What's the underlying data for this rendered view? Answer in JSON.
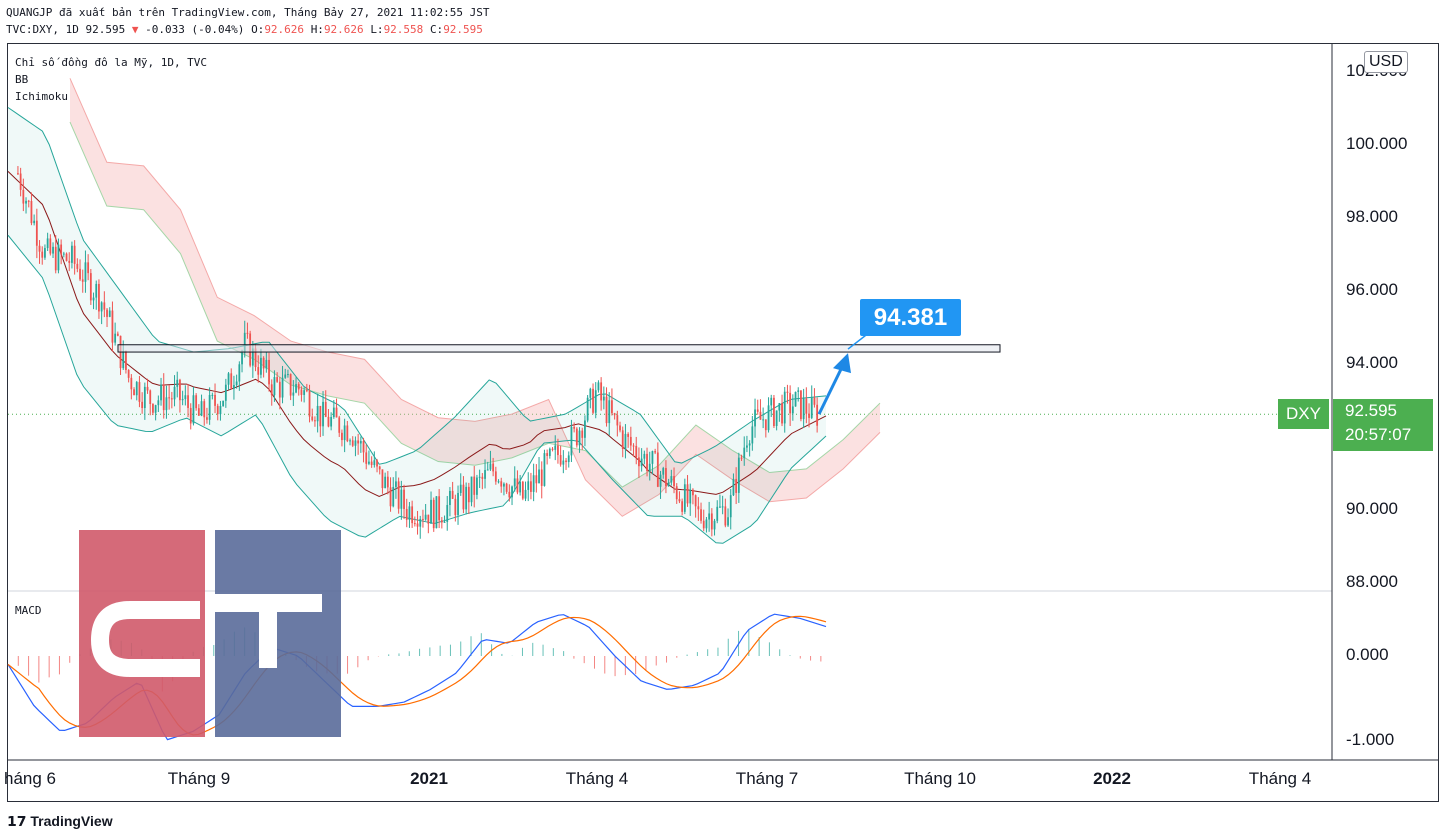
{
  "header": {
    "publish_line": "QUANGJP đã xuất bản trên TradingView.com, Tháng Bảy 27, 2021 11:02:55 JST",
    "symbol_line": "TVC:DXY, 1D 92.595",
    "change_arrow": "▼",
    "change": "-0.033 (-0.04%)",
    "o_label": "O:",
    "o_value": "92.626",
    "h_label": "H:",
    "h_value": "92.626",
    "l_label": "L:",
    "l_value": "92.558",
    "c_label": "C:",
    "c_value": "92.595"
  },
  "legend": {
    "title": "Chỉ số đồng đô la Mỹ, 1D, TVC",
    "indicator1": "BB",
    "indicator2": "Ichimoku",
    "macd": "MACD"
  },
  "price_axis": {
    "currency": "USD",
    "top_clipped": "102.000",
    "ticks": [
      "100.000",
      "98.000",
      "96.000",
      "94.000",
      "90.000",
      "88.000"
    ]
  },
  "macd_axis": {
    "ticks": [
      "0.000",
      "-1.000"
    ]
  },
  "time_axis": {
    "labels": [
      "háng 6",
      "Tháng 9",
      "2021",
      "Tháng 4",
      "Tháng 7",
      "Tháng 10",
      "2022",
      "Tháng 4"
    ]
  },
  "last_price": {
    "symbol": "DXY",
    "price": "92.595",
    "countdown": "20:57:07"
  },
  "annotation": {
    "target": "94.381"
  },
  "footer": {
    "brand": "TradingView"
  },
  "colors": {
    "up": "#26a69a",
    "down": "#ef5350",
    "bb_band": "#26a69a",
    "bb_basis": "#8b1a1a",
    "kumo_bull": "#a5d6a7",
    "kumo_bear": "#f4a9a8",
    "macd_line": "#2962ff",
    "signal_line": "#ff6d00",
    "callout": "#2196f3",
    "price_tag": "#4caf50",
    "logo_red": "#d05a6a",
    "logo_blue": "#5a6c9a"
  },
  "chart_data": {
    "type": "candlestick",
    "symbol": "DXY",
    "timeframe": "1D",
    "x_range": [
      "2020-05",
      "2022-05"
    ],
    "ylim": [
      87.5,
      102.4
    ],
    "close_path": {
      "dates": [
        "2020-05-27",
        "2020-06-10",
        "2020-06-25",
        "2020-07-10",
        "2020-07-25",
        "2020-08-05",
        "2020-08-20",
        "2020-09-01",
        "2020-09-15",
        "2020-09-25",
        "2020-10-10",
        "2020-10-25",
        "2020-11-05",
        "2020-11-20",
        "2020-12-05",
        "2020-12-20",
        "2021-01-05",
        "2021-01-20",
        "2021-02-05",
        "2021-02-20",
        "2021-03-05",
        "2021-03-20",
        "2021-03-31",
        "2021-04-15",
        "2021-04-30",
        "2021-05-15",
        "2021-05-25",
        "2021-06-10",
        "2021-06-20",
        "2021-07-01",
        "2021-07-15",
        "2021-07-27"
      ],
      "close": [
        99.2,
        97.0,
        96.8,
        95.8,
        93.6,
        93.0,
        93.1,
        92.5,
        93.2,
        94.5,
        93.4,
        93.3,
        92.5,
        92.2,
        90.9,
        90.0,
        89.9,
        90.3,
        91.1,
        90.3,
        91.2,
        92.0,
        93.2,
        91.9,
        91.2,
        90.4,
        89.8,
        90.0,
        92.2,
        92.6,
        92.9,
        92.595
      ]
    },
    "bb_upper_path": [
      101.0,
      100.3,
      97.4,
      96.0,
      94.6,
      94.3,
      94.4,
      94.6,
      93.3,
      92.8,
      91.2,
      91.6,
      92.5,
      93.6,
      92.4,
      92.6,
      93.2,
      92.6,
      91.2,
      91.7,
      92.4,
      93.0,
      93.1
    ],
    "bb_lower_path": [
      97.5,
      96.3,
      93.5,
      92.3,
      92.1,
      92.5,
      92.0,
      92.6,
      90.8,
      89.7,
      89.2,
      89.8,
      89.6,
      89.9,
      90.1,
      91.8,
      91.9,
      90.8,
      89.8,
      89.8,
      89.0,
      89.6,
      91.1,
      92.0
    ],
    "kumo_leading_span": [
      100.6,
      98.3,
      98.2,
      97.0,
      94.6,
      94.1,
      93.4,
      93.1,
      92.9,
      91.8,
      91.3,
      91.2,
      91.4,
      91.8,
      91.6,
      90.6,
      91.2,
      92.3,
      91.6,
      91.0,
      91.1,
      91.9,
      92.9
    ],
    "horizontal_zone": [
      94.3,
      94.5
    ],
    "target_annotation": 94.381,
    "macd": {
      "ylim": [
        -1.1,
        0.55
      ],
      "zero": 0
    }
  }
}
